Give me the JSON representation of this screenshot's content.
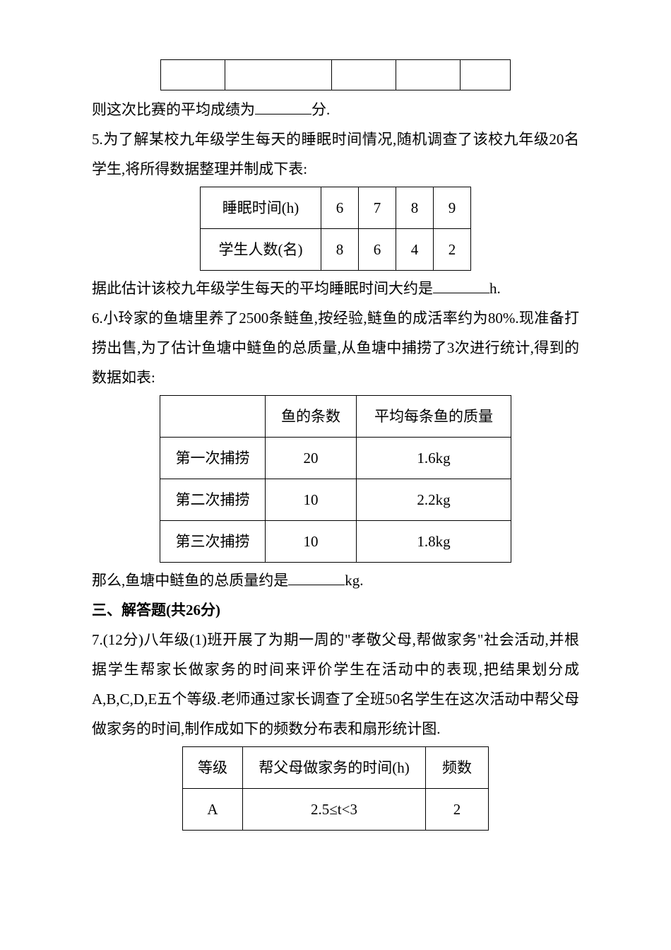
{
  "line1": "则这次比赛的平均成绩为",
  "line1_unit": "分.",
  "q5_p1": "5.为了解某校九年级学生每天的睡眠时间情况,随机调查了该校九年级20名学生,将所得数据整理并制成下表:",
  "table2": {
    "header_label": "睡眠时间(h)",
    "row2_label": "学生人数(名)",
    "cols": [
      "6",
      "7",
      "8",
      "9"
    ],
    "vals": [
      "8",
      "6",
      "4",
      "2"
    ]
  },
  "q5_p2a": "据此估计该校九年级学生每天的平均睡眠时间大约是",
  "q5_p2b": "h.",
  "q6_p1": "6.小玲家的鱼塘里养了2500条鲢鱼,按经验,鲢鱼的成活率约为80%.现准备打捞出售,为了估计鱼塘中鲢鱼的总质量,从鱼塘中捕捞了3次进行统计,得到的数据如表:",
  "table3": {
    "h2": "鱼的条数",
    "h3": "平均每条鱼的质量",
    "rows": [
      {
        "label": "第一次捕捞",
        "count": "20",
        "mass": "1.6kg"
      },
      {
        "label": "第二次捕捞",
        "count": "10",
        "mass": "2.2kg"
      },
      {
        "label": "第三次捕捞",
        "count": "10",
        "mass": "1.8kg"
      }
    ]
  },
  "q6_p2a": "那么,鱼塘中鲢鱼的总质量约是",
  "q6_p2b": "kg.",
  "section3": "三、解答题(共26分)",
  "q7_p1": "7.(12分)八年级(1)班开展了为期一周的\"孝敬父母,帮做家务\"社会活动,并根据学生帮家长做家务的时间来评价学生在活动中的表现,把结果划分成A,B,C,D,E五个等级.老师通过家长调查了全班50名学生在这次活动中帮父母做家务的时间,制作成如下的频数分布表和扇形统计图.",
  "table4": {
    "h1": "等级",
    "h2": "帮父母做家务的时间(h)",
    "h3": "频数",
    "rows": [
      {
        "grade": "A",
        "range": "2.5≤t<3",
        "freq": "2"
      }
    ]
  }
}
